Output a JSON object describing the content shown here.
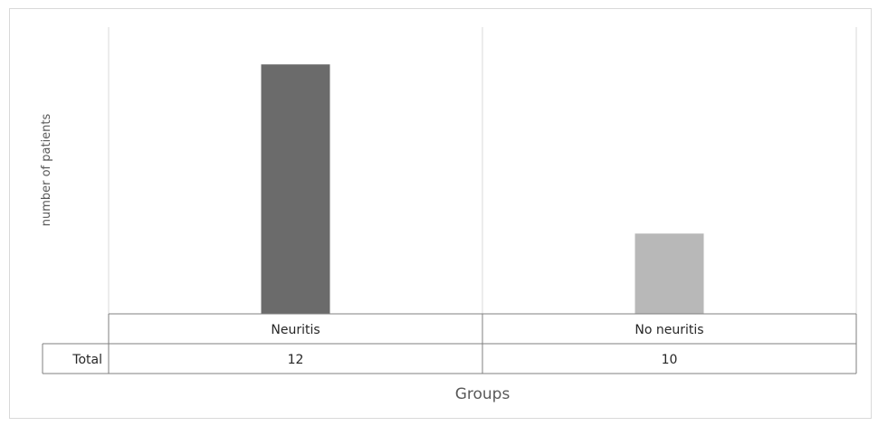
{
  "chart_data": {
    "type": "bar",
    "categories": [
      "Neuritis",
      "No neuritis"
    ],
    "series": [
      {
        "name": "Total",
        "values": [
          12,
          10
        ],
        "colors": [
          "#6b6b6b",
          "#b8b8b8"
        ]
      }
    ],
    "bar_heights_shown": [
      0.87,
      0.28
    ],
    "ylabel": "number of patients",
    "xlabel": "Groups",
    "data_table": {
      "row_header": "Total",
      "values": [
        "12",
        "10"
      ]
    },
    "grid": "vertical category separators",
    "legend": "none"
  }
}
